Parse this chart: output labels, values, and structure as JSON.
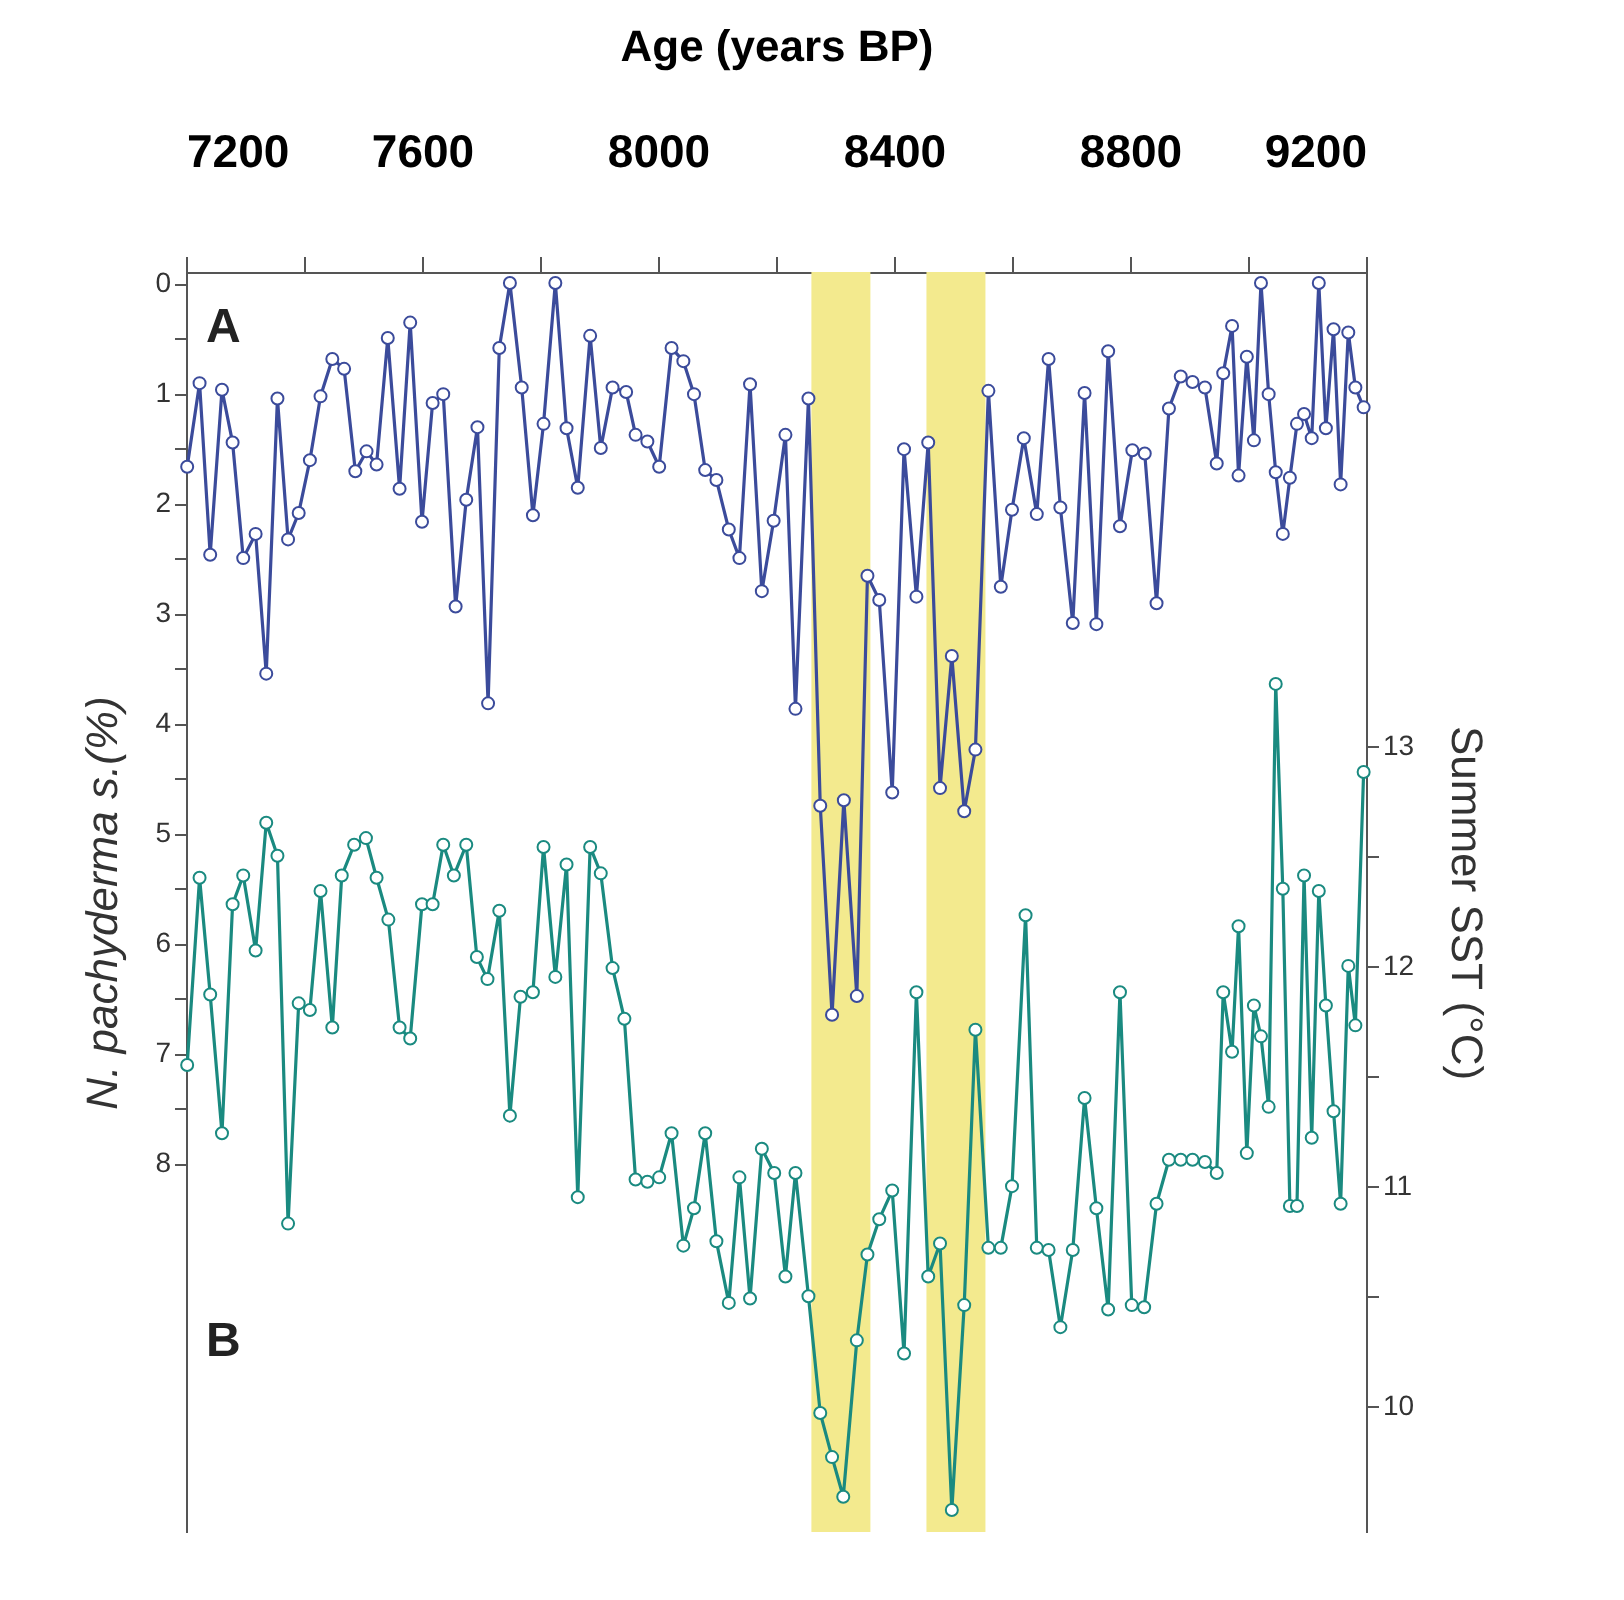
{
  "chart_data": {
    "type": "line",
    "xlabel": "Age (years BP)",
    "ylabel": "N. pachyderma s.(%)",
    "y2label": "Summer SST (°C)",
    "annotations": [
      "A",
      "B"
    ],
    "xlim": [
      7200,
      9200
    ],
    "xticks": [
      7200,
      {
        "value": 7400,
        "label": null
      },
      7600,
      {
        "value": 7800,
        "label": null
      },
      8000,
      {
        "value": 8200,
        "label": null
      },
      8400,
      {
        "value": 8600,
        "label": null
      },
      8800,
      {
        "value": 9000,
        "label": null
      },
      9200
    ],
    "ylim": [
      11.35,
      -0.1
    ],
    "yticks": [
      0,
      {
        "value": 0.5,
        "label": null
      },
      1,
      {
        "value": 1.5,
        "label": null
      },
      2,
      {
        "value": 2.5,
        "label": null
      },
      3,
      {
        "value": 3.5,
        "label": null
      },
      4,
      {
        "value": 4.5,
        "label": null
      },
      5,
      {
        "value": 5.5,
        "label": null
      },
      6,
      {
        "value": 6.5,
        "label": null
      },
      7,
      {
        "value": 7.5,
        "label": null
      },
      8
    ],
    "y2lim": [
      9.43,
      15.15
    ],
    "y2ticks": [
      10,
      {
        "value": 10.5,
        "label": null
      },
      11,
      {
        "value": 11.5,
        "label": null
      },
      12,
      {
        "value": 12.5,
        "label": null
      },
      13
    ],
    "grid": false,
    "marker": "circle",
    "bands": [
      {
        "axis": "x",
        "from": 8260,
        "to": 8360,
        "color": "#f3ea8e"
      },
      {
        "axis": "x",
        "from": 8455,
        "to": 8555,
        "color": "#f3ea8e"
      }
    ],
    "series": [
      {
        "color": "#3b4b9b",
        "x": [
          7202,
          7223,
          7241,
          7261,
          7279,
          7297,
          7318,
          7336,
          7355,
          7373,
          7391,
          7410,
          7428,
          7448,
          7468,
          7487,
          7506,
          7523,
          7542,
          7562,
          7580,
          7600,
          7618,
          7636,
          7657,
          7675,
          7694,
          7712,
          7731,
          7749,
          7769,
          7788,
          7806,
          7826,
          7845,
          7864,
          7885,
          7903,
          7923,
          7946,
          7962,
          7982,
          8002,
          8023,
          8043,
          8061,
          8080,
          8099,
          8120,
          8138,
          8156,
          8176,
          8196,
          8216,
          8233,
          8255,
          8275,
          8295,
          8315,
          8337,
          8355,
          8375,
          8397,
          8417,
          8438,
          8458,
          8478,
          8498,
          8519,
          8538,
          8560,
          8581,
          8600,
          8620,
          8642,
          8662,
          8682,
          8703,
          8723,
          8743,
          8763,
          8783,
          8804,
          8825,
          8845,
          8866,
          8886,
          8906,
          8927,
          8947,
          8958,
          8973,
          8984,
          8998,
          9010,
          9022,
          9035,
          9047,
          9059,
          9071,
          9083,
          9095,
          9108,
          9120,
          9132,
          9145,
          9157,
          9170,
          9182,
          9196
        ],
        "values": [
          1.67,
          0.91,
          2.47,
          0.97,
          1.45,
          2.5,
          2.28,
          3.55,
          1.05,
          2.33,
          2.09,
          1.61,
          1.03,
          0.69,
          0.78,
          1.71,
          1.53,
          1.65,
          0.5,
          1.87,
          0.36,
          2.17,
          1.09,
          1.01,
          2.94,
          1.97,
          1.31,
          3.82,
          0.59,
          0.0,
          0.95,
          2.11,
          1.28,
          0.0,
          1.32,
          1.86,
          0.48,
          1.5,
          0.95,
          0.99,
          1.38,
          1.44,
          1.67,
          0.59,
          0.71,
          1.01,
          1.7,
          1.79,
          2.24,
          2.5,
          0.92,
          2.8,
          2.16,
          1.38,
          3.87,
          1.05,
          4.75,
          6.65,
          4.7,
          6.48,
          2.66,
          2.88,
          4.63,
          1.51,
          2.85,
          1.45,
          4.59,
          3.39,
          4.8,
          4.24,
          0.98,
          2.76,
          2.06,
          1.41,
          2.1,
          0.69,
          2.04,
          3.09,
          1.0,
          3.1,
          0.62,
          2.21,
          1.52,
          1.55,
          2.91,
          1.14,
          0.85,
          0.9,
          0.95,
          1.64,
          0.82,
          0.39,
          1.75,
          0.67,
          1.43,
          0.0,
          1.01,
          1.72,
          2.28,
          1.77,
          1.28,
          1.19,
          1.41,
          0.0,
          1.32,
          0.42,
          1.83,
          0.45,
          0.95,
          1.13
        ]
      },
      {
        "color": "#1a8a80",
        "axis": "y2",
        "x": [
          7202,
          7223,
          7241,
          7261,
          7279,
          7297,
          7318,
          7336,
          7355,
          7373,
          7391,
          7410,
          7428,
          7448,
          7464,
          7485,
          7505,
          7523,
          7543,
          7562,
          7580,
          7600,
          7618,
          7636,
          7654,
          7675,
          7693,
          7711,
          7731,
          7749,
          7767,
          7788,
          7806,
          7826,
          7845,
          7864,
          7885,
          7903,
          7923,
          7943,
          7962,
          7982,
          8002,
          8023,
          8043,
          8061,
          8080,
          8099,
          8120,
          8138,
          8156,
          8176,
          8197,
          8216,
          8233,
          8255,
          8275,
          8295,
          8314,
          8337,
          8355,
          8375,
          8397,
          8417,
          8438,
          8458,
          8478,
          8498,
          8519,
          8538,
          8560,
          8581,
          8600,
          8623,
          8642,
          8662,
          8682,
          8703,
          8723,
          8743,
          8763,
          8783,
          8803,
          8824,
          8845,
          8866,
          8886,
          8906,
          8927,
          8947,
          8958,
          8973,
          8984,
          8998,
          9010,
          9022,
          9035,
          9047,
          9059,
          9071,
          9083,
          9095,
          9108,
          9120,
          9132,
          9145,
          9157,
          9170,
          9182,
          9196
        ],
        "values": [
          11.55,
          12.4,
          11.87,
          11.24,
          12.28,
          12.41,
          12.07,
          12.65,
          12.5,
          10.83,
          11.83,
          11.8,
          12.34,
          11.72,
          12.41,
          12.55,
          12.58,
          12.4,
          12.21,
          11.72,
          11.67,
          12.28,
          12.28,
          12.55,
          12.41,
          12.55,
          12.04,
          11.94,
          12.25,
          11.32,
          11.86,
          11.88,
          12.54,
          11.95,
          12.46,
          10.95,
          12.54,
          12.42,
          11.99,
          11.76,
          11.03,
          11.02,
          11.04,
          11.24,
          10.73,
          10.9,
          11.24,
          10.75,
          10.47,
          11.04,
          10.49,
          11.17,
          11.06,
          10.59,
          11.06,
          10.5,
          9.97,
          9.77,
          9.59,
          10.3,
          10.69,
          10.85,
          10.98,
          10.24,
          11.88,
          10.59,
          10.74,
          9.53,
          10.46,
          11.71,
          10.72,
          10.72,
          11.0,
          12.23,
          10.72,
          10.71,
          10.36,
          10.71,
          11.4,
          10.9,
          10.44,
          11.88,
          10.46,
          10.45,
          10.92,
          11.12,
          11.12,
          11.12,
          11.11,
          11.06,
          11.88,
          11.61,
          12.18,
          11.15,
          11.82,
          11.68,
          11.36,
          13.28,
          12.35,
          10.91,
          10.91,
          12.41,
          11.22,
          12.34,
          11.82,
          11.34,
          10.92,
          12.0,
          11.73,
          12.88
        ]
      }
    ]
  }
}
